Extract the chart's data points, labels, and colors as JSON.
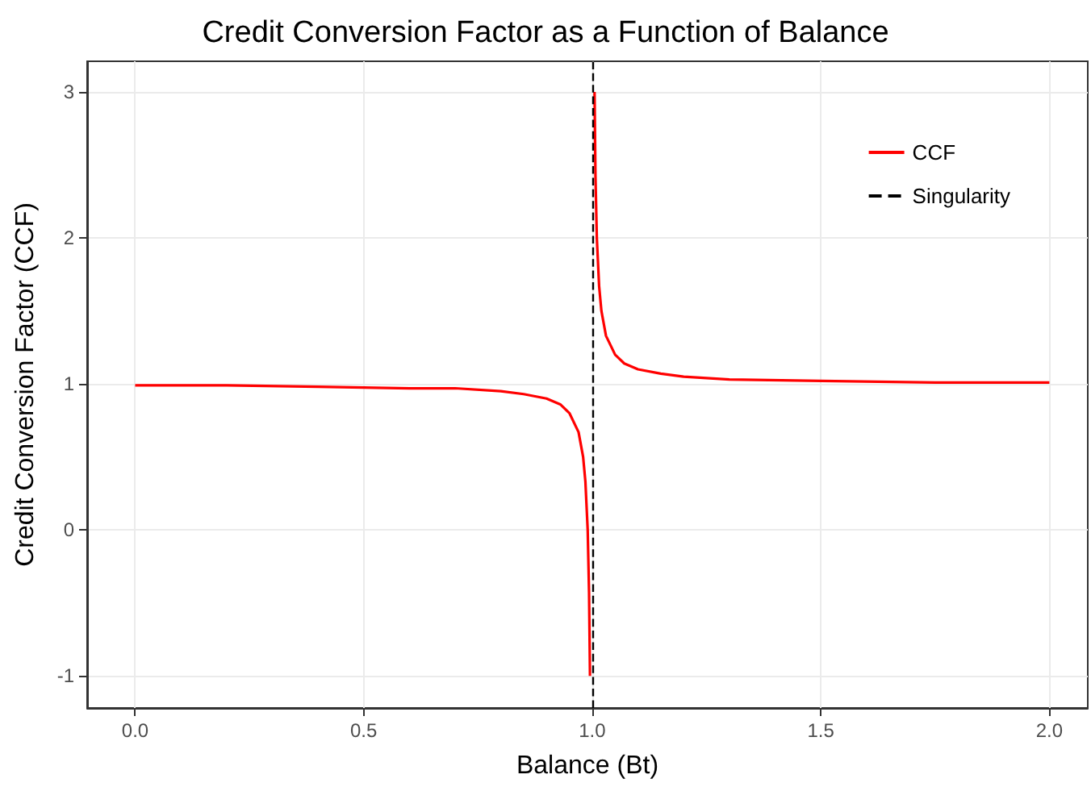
{
  "chart_data": {
    "type": "line",
    "title": "Credit Conversion Factor as a Function of Balance",
    "xlabel": "Balance (Bt)",
    "ylabel": "Credit Conversion Factor (CCF)",
    "x": [
      0,
      0.2,
      0.4,
      0.6,
      0.7,
      0.8,
      0.85,
      0.9,
      0.93,
      0.95,
      0.97,
      0.98,
      0.985,
      0.99,
      0.993,
      0.995,
      1,
      1.005,
      1.007,
      1.01,
      1.015,
      1.02,
      1.03,
      1.05,
      1.07,
      1.1,
      1.15,
      1.2,
      1.3,
      1.5,
      1.75,
      2
    ],
    "series": [
      {
        "name": "CCF",
        "color": "#ff0000",
        "values": [
          0.99,
          0.99,
          0.98,
          0.97,
          0.97,
          0.95,
          0.93,
          0.9,
          0.86,
          0.8,
          0.67,
          0.5,
          0.33,
          0,
          -0.43,
          -1,
          null,
          3,
          2.43,
          2,
          1.67,
          1.5,
          1.33,
          1.2,
          1.14,
          1.1,
          1.07,
          1.05,
          1.03,
          1.02,
          1.01,
          1.01
        ]
      }
    ],
    "ref_lines": [
      {
        "axis": "x",
        "value": 1,
        "label": "Singularity",
        "color": "#000000",
        "line_style": "dashed"
      }
    ],
    "xlim": [
      -0.105,
      2.084
    ],
    "xticks": [
      {
        "value": 0,
        "label": "0.0"
      },
      0.5,
      {
        "value": 1,
        "label": "1.0"
      },
      1.5,
      {
        "value": 2,
        "label": "2.0"
      }
    ],
    "ylim": [
      -1.22,
      3.21
    ],
    "yticks": [
      -1,
      0,
      1,
      2,
      3
    ],
    "grid": true,
    "legend": "top right",
    "marker": "none",
    "line_style": "solid"
  }
}
